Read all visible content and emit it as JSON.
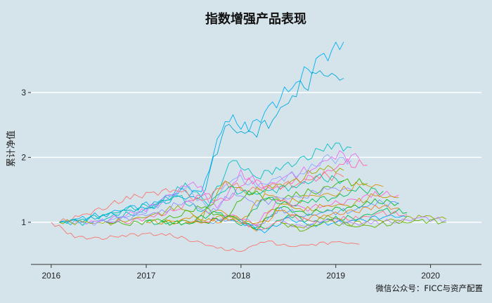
{
  "chart_data": {
    "type": "line",
    "title": "指数增强产品表现",
    "xlabel": "",
    "ylabel": "累计净值",
    "x_ticks": [
      "2016",
      "2017",
      "2018",
      "2019",
      "2020"
    ],
    "y_ticks": [
      "1",
      "2",
      "3"
    ],
    "xlim": [
      "2015-10-15",
      "2020-07-15"
    ],
    "ylim": [
      0.35,
      3.95
    ],
    "grid": "horizontal",
    "legend": "none",
    "caption": "微信公众号：FICC与资产配置",
    "series": [
      {
        "color": "#00b0f6",
        "start": "2016-02-01",
        "values": [
          1.0,
          1.06,
          1.14,
          1.22,
          1.3,
          1.48,
          1.45,
          2.62,
          2.45,
          2.78,
          3.2,
          3.5,
          3.78
        ]
      },
      {
        "color": "#00a9d8",
        "start": "2016-02-01",
        "values": [
          1.0,
          1.04,
          1.1,
          1.18,
          1.25,
          1.38,
          1.38,
          2.5,
          2.32,
          2.6,
          3.0,
          3.3,
          3.22
        ]
      },
      {
        "color": "#00bfc4",
        "start": "2016-03-01",
        "values": [
          1.0,
          0.99,
          1.08,
          1.15,
          1.3,
          1.58,
          1.3,
          1.95,
          1.7,
          1.85,
          1.95,
          2.2,
          2.15
        ]
      },
      {
        "color": "#e76bf3",
        "start": "2016-04-01",
        "values": [
          1.0,
          1.0,
          1.1,
          1.2,
          1.4,
          1.65,
          1.2,
          1.75,
          1.55,
          1.7,
          1.82,
          2.05,
          1.98
        ]
      },
      {
        "color": "#8ea9ff",
        "start": "2016-03-01",
        "values": [
          1.0,
          0.98,
          1.06,
          1.12,
          1.3,
          1.55,
          1.2,
          1.72,
          1.55,
          1.68,
          1.78,
          1.98,
          1.95
        ]
      },
      {
        "color": "#ff62bc",
        "start": "2016-08-01",
        "values": [
          1.0,
          1.02,
          1.08,
          1.2,
          1.45,
          1.3,
          1.68,
          1.5,
          1.62,
          1.72,
          1.9,
          1.88
        ]
      },
      {
        "color": "#a3a500",
        "start": "2016-02-01",
        "values": [
          1.0,
          1.0,
          0.98,
          1.05,
          1.1,
          1.25,
          1.05,
          1.62,
          1.45,
          1.55,
          1.62,
          1.85,
          1.8
        ]
      },
      {
        "color": "#f8766d",
        "start": "2016-02-01",
        "values": [
          1.0,
          1.1,
          1.25,
          1.38,
          1.45,
          1.52,
          1.3,
          1.6,
          1.5,
          1.55,
          1.6,
          1.72,
          1.7
        ]
      },
      {
        "color": "#00c0af",
        "start": "2016-02-01",
        "values": [
          1.0,
          1.05,
          1.12,
          1.2,
          1.28,
          1.4,
          1.15,
          1.55,
          1.42,
          1.5,
          1.56,
          1.68,
          1.65
        ]
      },
      {
        "color": "#39b600",
        "start": "2016-08-01",
        "values": [
          1.0,
          0.98,
          1.02,
          1.1,
          1.25,
          1.05,
          1.5,
          1.32,
          1.42,
          1.5,
          1.62,
          1.6
        ]
      },
      {
        "color": "#d89000",
        "start": "2017-01-01",
        "values": [
          1.0,
          1.0,
          1.08,
          1.2,
          1.0,
          1.45,
          1.3,
          1.4,
          1.45,
          1.58,
          1.55
        ]
      },
      {
        "color": "#00bd5c",
        "start": "2017-01-01",
        "values": [
          1.0,
          0.98,
          1.04,
          1.15,
          0.95,
          1.4,
          1.25,
          1.35,
          1.38,
          1.5,
          1.48
        ]
      },
      {
        "color": "#9590ff",
        "start": "2016-06-01",
        "values": [
          1.0,
          1.02,
          1.1,
          1.15,
          1.35,
          1.12,
          1.45,
          1.3,
          1.36,
          1.4,
          1.52,
          1.5
        ]
      },
      {
        "color": "#fd61d1",
        "start": "2017-06-01",
        "values": [
          1.0,
          1.02,
          1.1,
          0.98,
          1.35,
          1.2,
          1.28,
          1.32,
          1.44,
          1.42
        ]
      },
      {
        "color": "#c99800",
        "start": "2017-03-01",
        "values": [
          1.0,
          1.0,
          1.05,
          1.1,
          0.95,
          1.3,
          1.18,
          1.25,
          1.28,
          1.4,
          1.38
        ]
      },
      {
        "color": "#00b81f",
        "start": "2017-03-01",
        "values": [
          1.0,
          0.98,
          1.02,
          1.08,
          0.9,
          1.25,
          1.12,
          1.2,
          1.22,
          1.32,
          1.3
        ]
      },
      {
        "color": "#619cff",
        "start": "2017-09-01",
        "values": [
          1.0,
          1.05,
          0.92,
          1.2,
          1.1,
          1.15,
          1.18,
          1.3,
          1.28
        ]
      },
      {
        "color": "#e7861b",
        "start": "2017-06-01",
        "values": [
          1.0,
          1.0,
          1.04,
          0.9,
          1.18,
          1.06,
          1.12,
          1.15,
          1.25,
          1.22
        ]
      },
      {
        "color": "#00bb4e",
        "start": "2018-01-01",
        "values": [
          1.0,
          0.88,
          1.12,
          1.0,
          1.05,
          1.08,
          1.18,
          1.15
        ]
      },
      {
        "color": "#ff6c90",
        "start": "2018-01-01",
        "values": [
          1.0,
          0.9,
          1.1,
          1.0,
          1.04,
          1.06,
          1.14,
          1.12
        ]
      },
      {
        "color": "#00abfd",
        "start": "2018-01-01",
        "values": [
          1.0,
          0.86,
          1.05,
          0.96,
          1.0,
          1.02,
          1.1,
          1.08
        ]
      },
      {
        "color": "#93aa00",
        "start": "2018-06-01",
        "values": [
          1.0,
          0.9,
          1.1,
          0.98,
          1.02,
          1.04,
          1.1,
          1.05
        ]
      },
      {
        "color": "#b983ff",
        "start": "2018-06-01",
        "values": [
          1.0,
          0.92,
          1.06,
          0.97,
          1.0,
          1.02,
          1.06,
          1.03
        ]
      },
      {
        "color": "#5bb300",
        "start": "2018-06-01",
        "values": [
          1.0,
          0.88,
          1.02,
          0.93,
          0.96,
          0.98,
          1.03,
          1.0
        ]
      },
      {
        "color": "#f8766d",
        "start": "2016-01-01",
        "values": [
          1.0,
          0.78,
          0.74,
          0.8,
          0.82,
          0.8,
          0.72,
          0.6,
          0.55,
          0.72,
          0.62,
          0.66,
          0.7,
          0.66
        ]
      }
    ]
  }
}
